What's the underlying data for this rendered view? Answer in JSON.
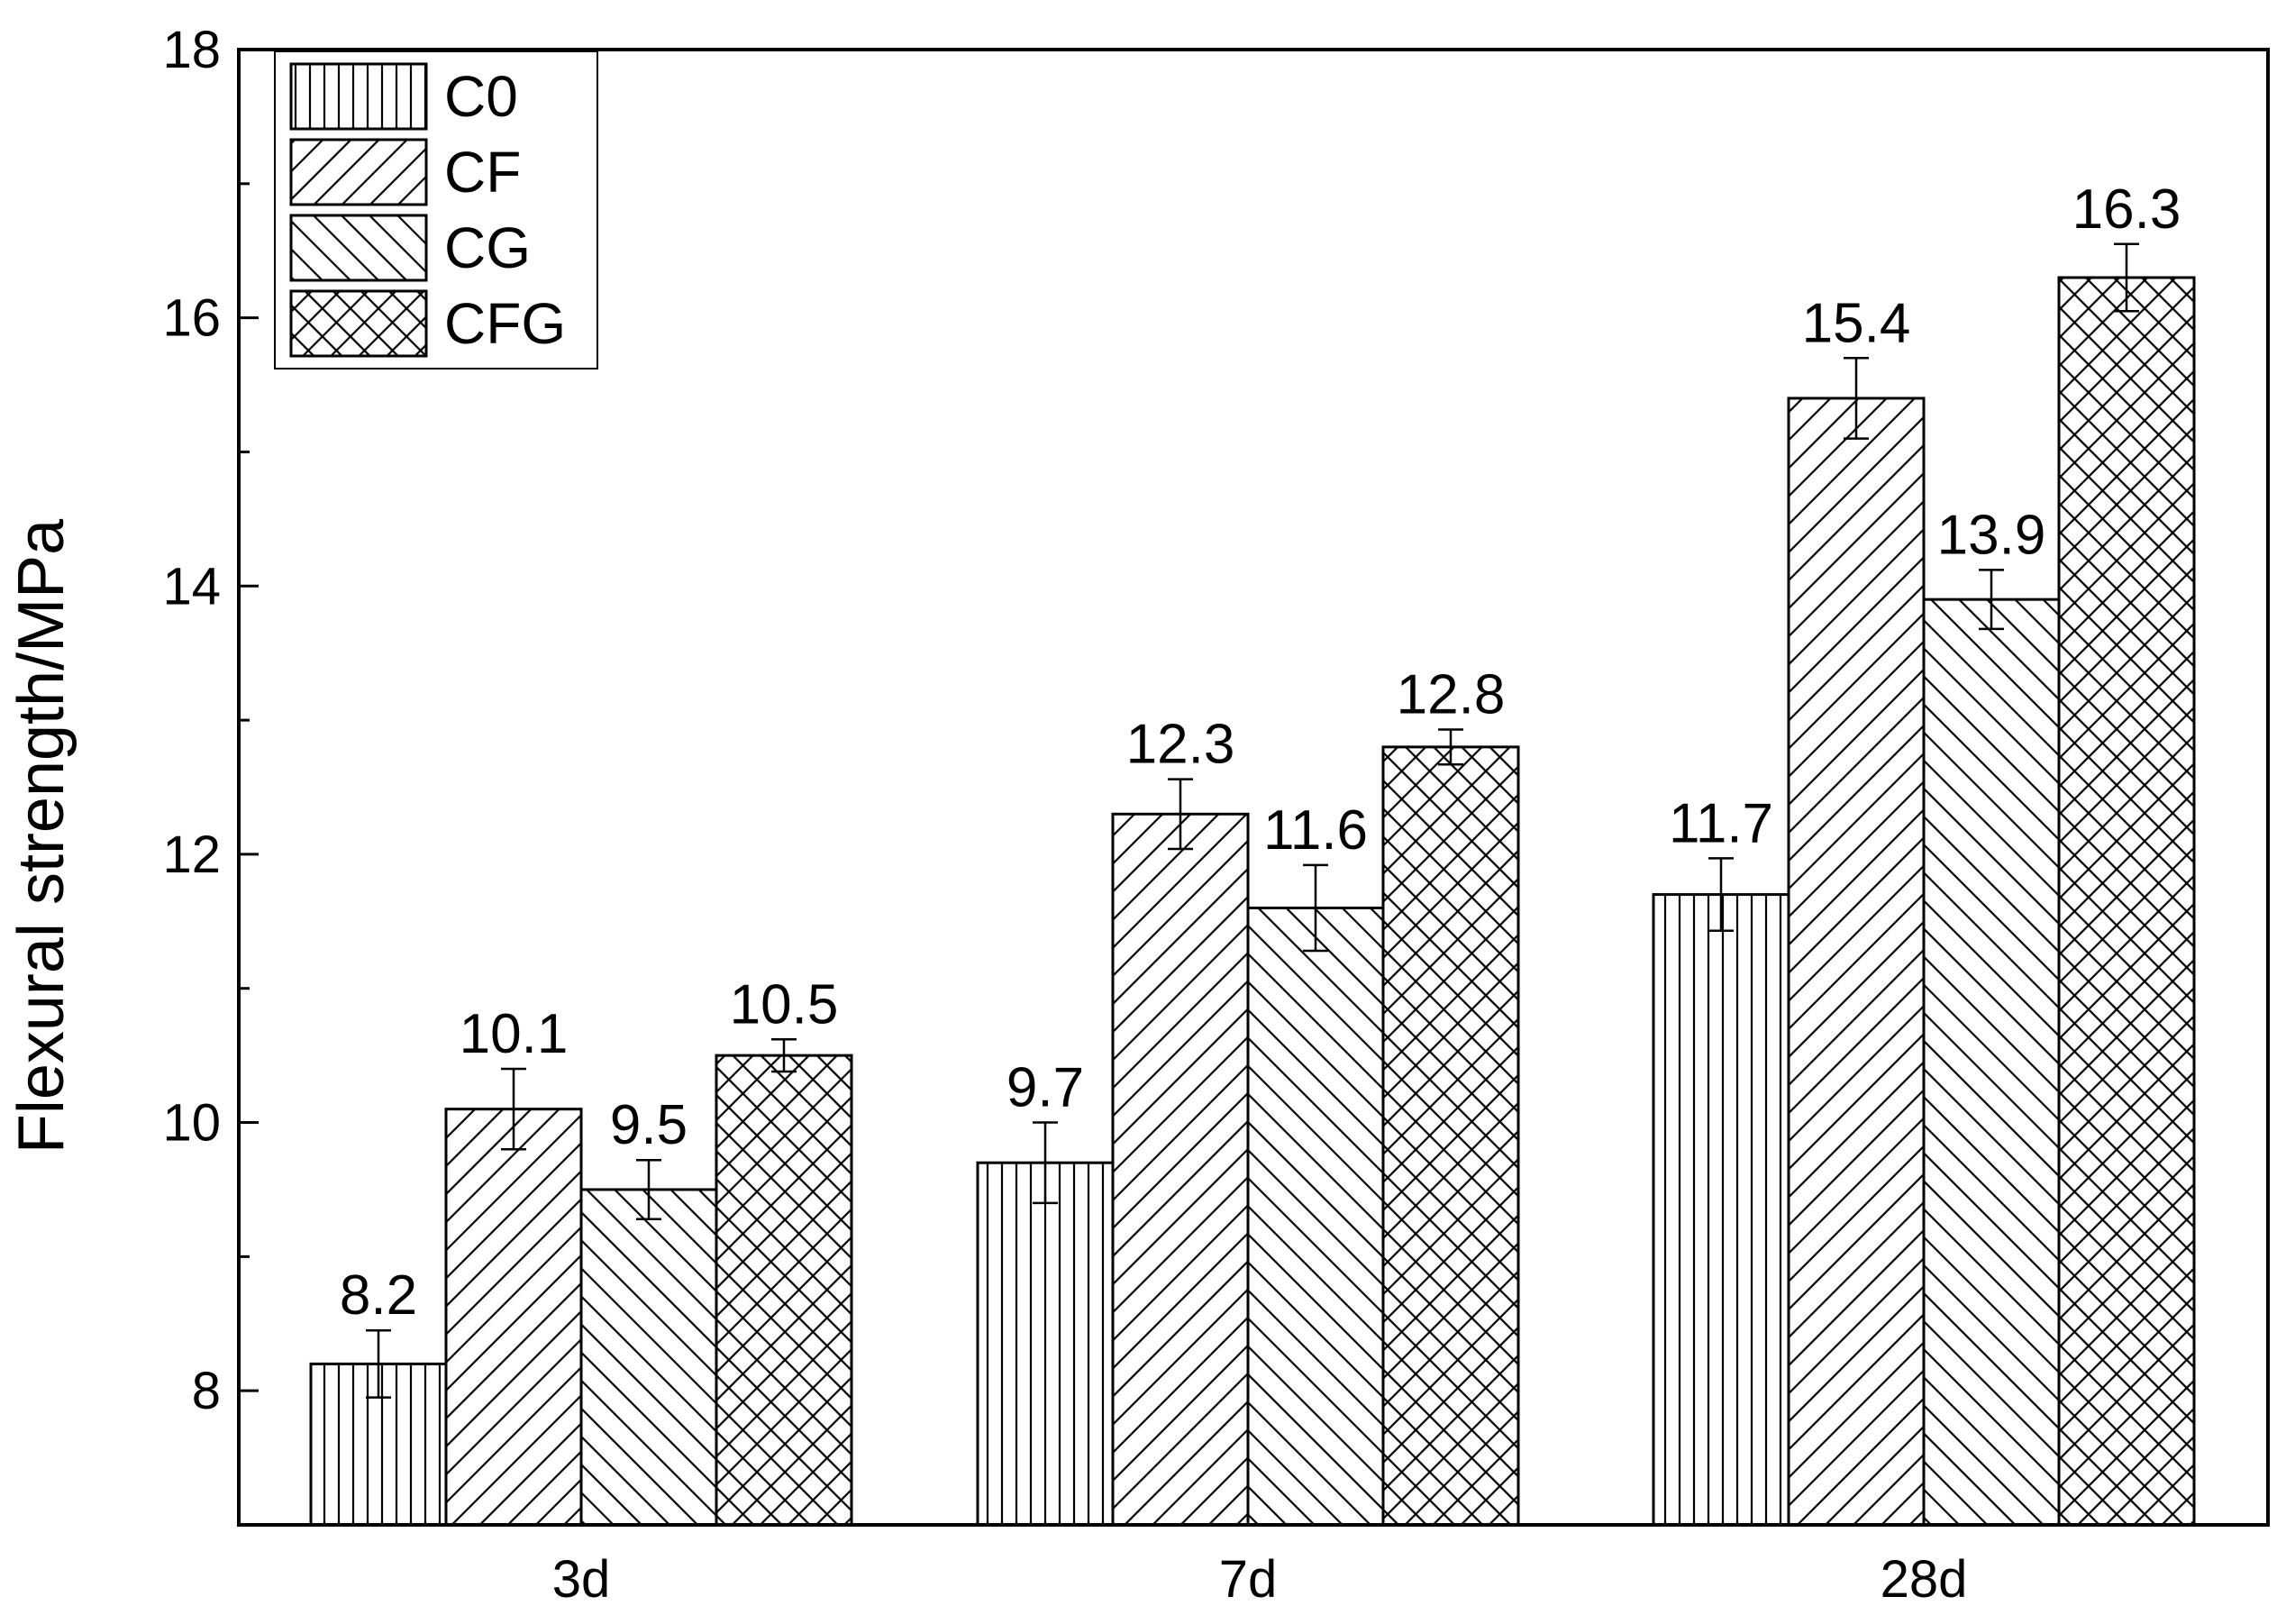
{
  "chart_data": {
    "type": "bar",
    "categories": [
      "3d",
      "7d",
      "28d"
    ],
    "series": [
      {
        "name": "C0",
        "values": [
          8.2,
          9.7,
          11.7
        ],
        "errors": [
          0.25,
          0.3,
          0.27
        ],
        "pattern": "vertical"
      },
      {
        "name": "CF",
        "values": [
          10.1,
          12.3,
          15.4
        ],
        "errors": [
          0.3,
          0.26,
          0.3
        ],
        "pattern": "forward-diagonal"
      },
      {
        "name": "CG",
        "values": [
          9.5,
          11.6,
          13.9
        ],
        "errors": [
          0.22,
          0.32,
          0.22
        ],
        "pattern": "backward-diagonal"
      },
      {
        "name": "CFG",
        "values": [
          10.5,
          12.8,
          16.3
        ],
        "errors": [
          0.12,
          0.13,
          0.25
        ],
        "pattern": "crosshatch"
      }
    ],
    "data_labels": [
      [
        "8.2",
        "9.7",
        "11.7"
      ],
      [
        "10.1",
        "12.3",
        "15.4"
      ],
      [
        "9.5",
        "11.6",
        "13.9"
      ],
      [
        "10.5",
        "12.8",
        "16.3"
      ]
    ],
    "title": "",
    "xlabel": "",
    "ylabel": "Flexural strength/MPa",
    "ylim": [
      7,
      18
    ],
    "yticks": [
      8,
      10,
      12,
      14,
      16,
      18
    ],
    "ytick_labels": [
      "8",
      "10",
      "12",
      "14",
      "16",
      "18"
    ],
    "grid": false,
    "legend": "top-left",
    "colors": {
      "bar_fill": "#ffffff",
      "stroke": "#000000"
    }
  }
}
